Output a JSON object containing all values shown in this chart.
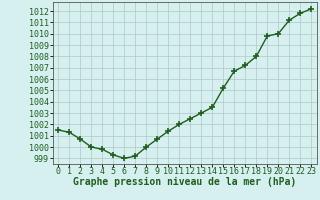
{
  "x": [
    0,
    1,
    2,
    3,
    4,
    5,
    6,
    7,
    8,
    9,
    10,
    11,
    12,
    13,
    14,
    15,
    16,
    17,
    18,
    19,
    20,
    21,
    22,
    23
  ],
  "y": [
    1001.5,
    1001.3,
    1000.7,
    1000.0,
    999.8,
    999.3,
    999.0,
    999.2,
    1000.0,
    1000.7,
    1001.4,
    1002.0,
    1002.5,
    1003.0,
    1003.5,
    1005.2,
    1006.7,
    1007.2,
    1008.0,
    1009.8,
    1010.0,
    1011.2,
    1011.8,
    1012.2
  ],
  "line_color": "#1f5e1f",
  "marker": "+",
  "markersize": 4,
  "markeredgewidth": 1.2,
  "linewidth": 1.0,
  "bg_color": "#d5f0ee",
  "grid_color": "#b0c8c8",
  "xlabel": "Graphe pression niveau de la mer (hPa)",
  "xlabel_fontsize": 7,
  "xlabel_bold": true,
  "tick_fontsize": 6,
  "ylim": [
    998.5,
    1012.8
  ],
  "xlim": [
    -0.5,
    23.5
  ],
  "yticks": [
    999,
    1000,
    1001,
    1002,
    1003,
    1004,
    1005,
    1006,
    1007,
    1008,
    1009,
    1010,
    1011,
    1012
  ],
  "xticks": [
    0,
    1,
    2,
    3,
    4,
    5,
    6,
    7,
    8,
    9,
    10,
    11,
    12,
    13,
    14,
    15,
    16,
    17,
    18,
    19,
    20,
    21,
    22,
    23
  ]
}
